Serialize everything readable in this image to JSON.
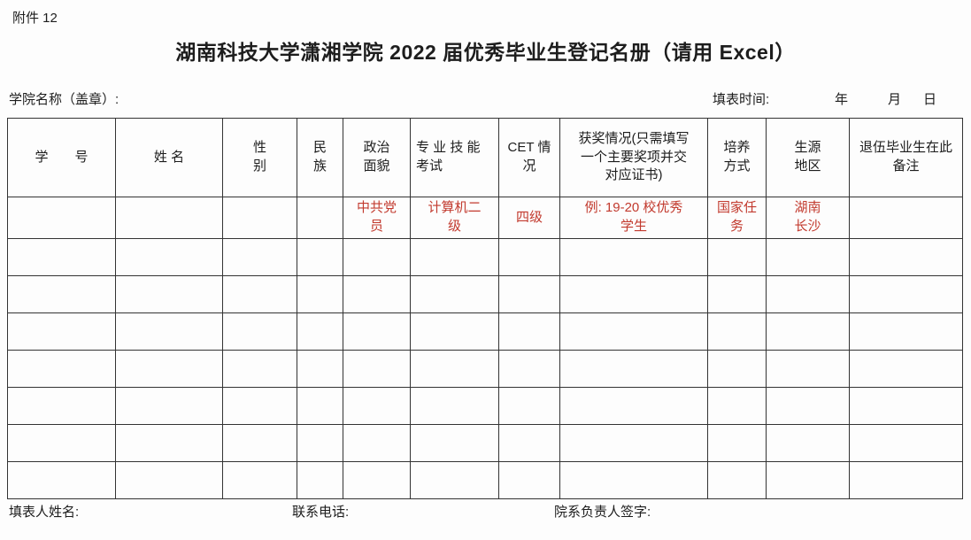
{
  "page": {
    "attachment_label": "附件 12",
    "title": "湖南科技大学潇湘学院 2022 届优秀毕业生登记名册（请用 Excel）",
    "college_name_label": "学院名称（盖章）:",
    "fill_time": {
      "label": "填表时间:",
      "year": "年",
      "month": "月",
      "day": "日"
    }
  },
  "table": {
    "columns": [
      {
        "label": "学　　号"
      },
      {
        "label": "姓 名"
      },
      {
        "label": "性\n别"
      },
      {
        "label": "民\n族"
      },
      {
        "label": "政治\n面貌"
      },
      {
        "label": "专 业 技 能\n考试"
      },
      {
        "label": "CET 情\n况"
      },
      {
        "label": "获奖情况(只需填写\n一个主要奖项并交\n对应证书)"
      },
      {
        "label": "培养\n方式"
      },
      {
        "label": "生源\n地区"
      },
      {
        "label": "退伍毕业生在此\n备注"
      }
    ],
    "example_row": {
      "cells": [
        "",
        "",
        "",
        "",
        "中共党\n员",
        "计算机二\n级",
        "四级",
        "例: 19-20 校优秀\n学生",
        "国家任\n务",
        "湖南\n长沙",
        ""
      ]
    },
    "empty_row_count": 7
  },
  "footer": {
    "preparer_label": "填表人姓名:",
    "phone_label": "联系电话:",
    "signer_label": "院系负责人签字:"
  },
  "colors": {
    "example_text": "#c23a2e",
    "border": "#333333",
    "text": "#1d1d1d",
    "background": "#fdfdfd"
  }
}
